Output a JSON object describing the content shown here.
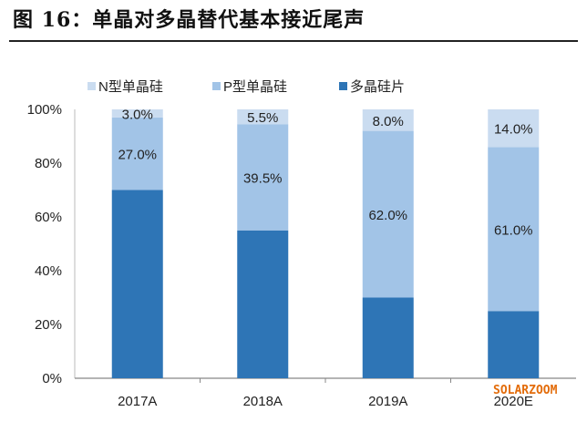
{
  "title": "图 16：单晶对多晶替代基本接近尾声",
  "watermark": "SOLARZOOM",
  "chart_data": {
    "type": "bar",
    "stacked": true,
    "title": "图 16：单晶对多晶替代基本接近尾声",
    "categories": [
      "2017A",
      "2018A",
      "2019A",
      "2020E"
    ],
    "series": [
      {
        "name": "多晶硅片",
        "color": "#2e75b6",
        "values": [
          70,
          55,
          30,
          25
        ]
      },
      {
        "name": "P型单晶硅",
        "color": "#a2c4e7",
        "values": [
          27,
          39.5,
          62,
          61
        ]
      },
      {
        "name": "N型单晶硅",
        "color": "#cadcf0",
        "values": [
          3,
          5.5,
          8,
          14
        ]
      }
    ],
    "legend_order": [
      "N型单晶硅",
      "P型单晶硅",
      "多晶硅片"
    ],
    "data_labels": {
      "P型单晶硅": [
        "27.0%",
        "39.5%",
        "62.0%",
        "61.0%"
      ],
      "N型单晶硅": [
        "3.0%",
        "5.5%",
        "8.0%",
        "14.0%"
      ]
    },
    "yticks": [
      "0%",
      "20%",
      "40%",
      "60%",
      "80%",
      "100%"
    ],
    "ylim": [
      0,
      100
    ],
    "xlabel": "",
    "ylabel": "",
    "legend_position": "top",
    "grid": false
  }
}
